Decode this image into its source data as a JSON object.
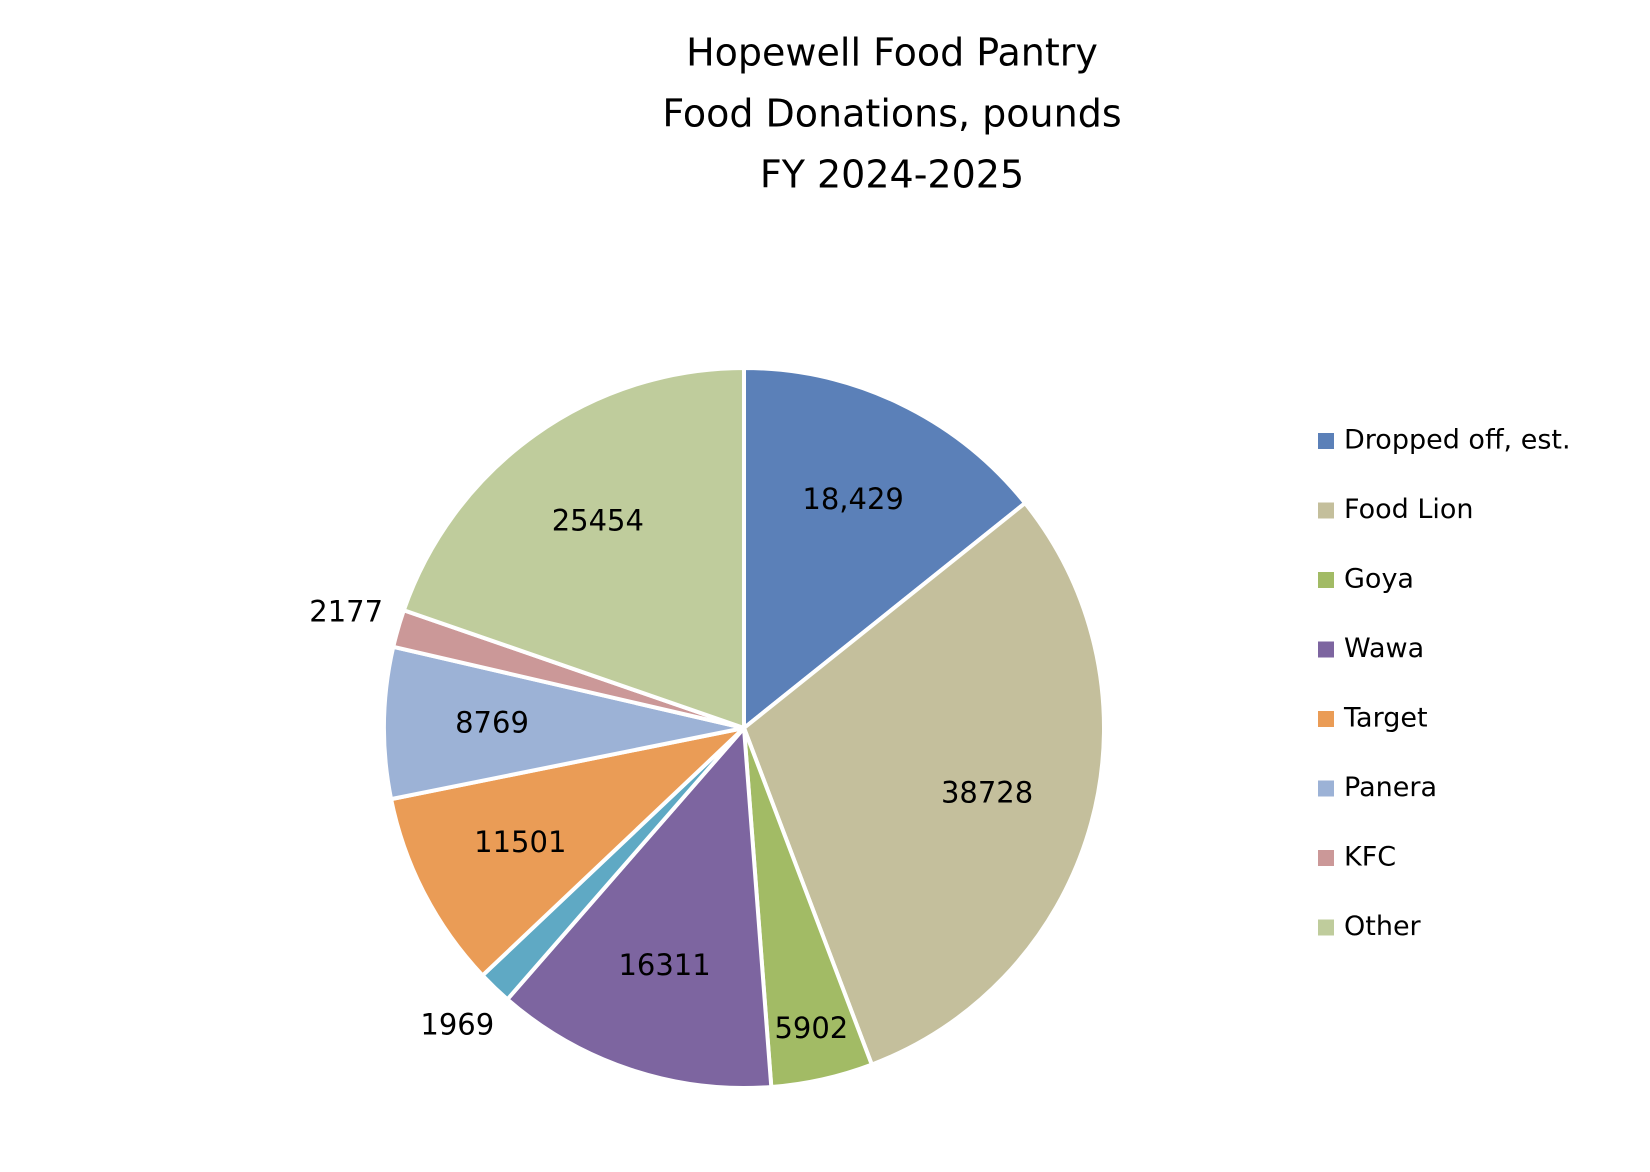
{
  "chart_data": {
    "type": "pie",
    "title": [
      "Hopewell Food Pantry",
      "Food Donations, pounds",
      "FY 2024-2025"
    ],
    "categories": [
      "Dropped off, est.",
      "Food Lion",
      "Goya",
      "Wawa",
      null,
      "Target",
      "Panera",
      "KFC",
      "Other"
    ],
    "values": [
      18429,
      38728,
      5902,
      16311,
      1969,
      11501,
      8769,
      2177,
      25454
    ],
    "value_labels": [
      "18,429",
      "38728",
      "5902",
      "16311",
      "1969",
      "11501",
      "8769",
      "2177",
      "25454"
    ],
    "colors": [
      "#5b80b8",
      "#c4bf9c",
      "#a2bb65",
      "#7d65a0",
      "#5fa9c4",
      "#ea9c56",
      "#9cb2d6",
      "#cb9898",
      "#bfcc9c"
    ],
    "legend": "right"
  }
}
